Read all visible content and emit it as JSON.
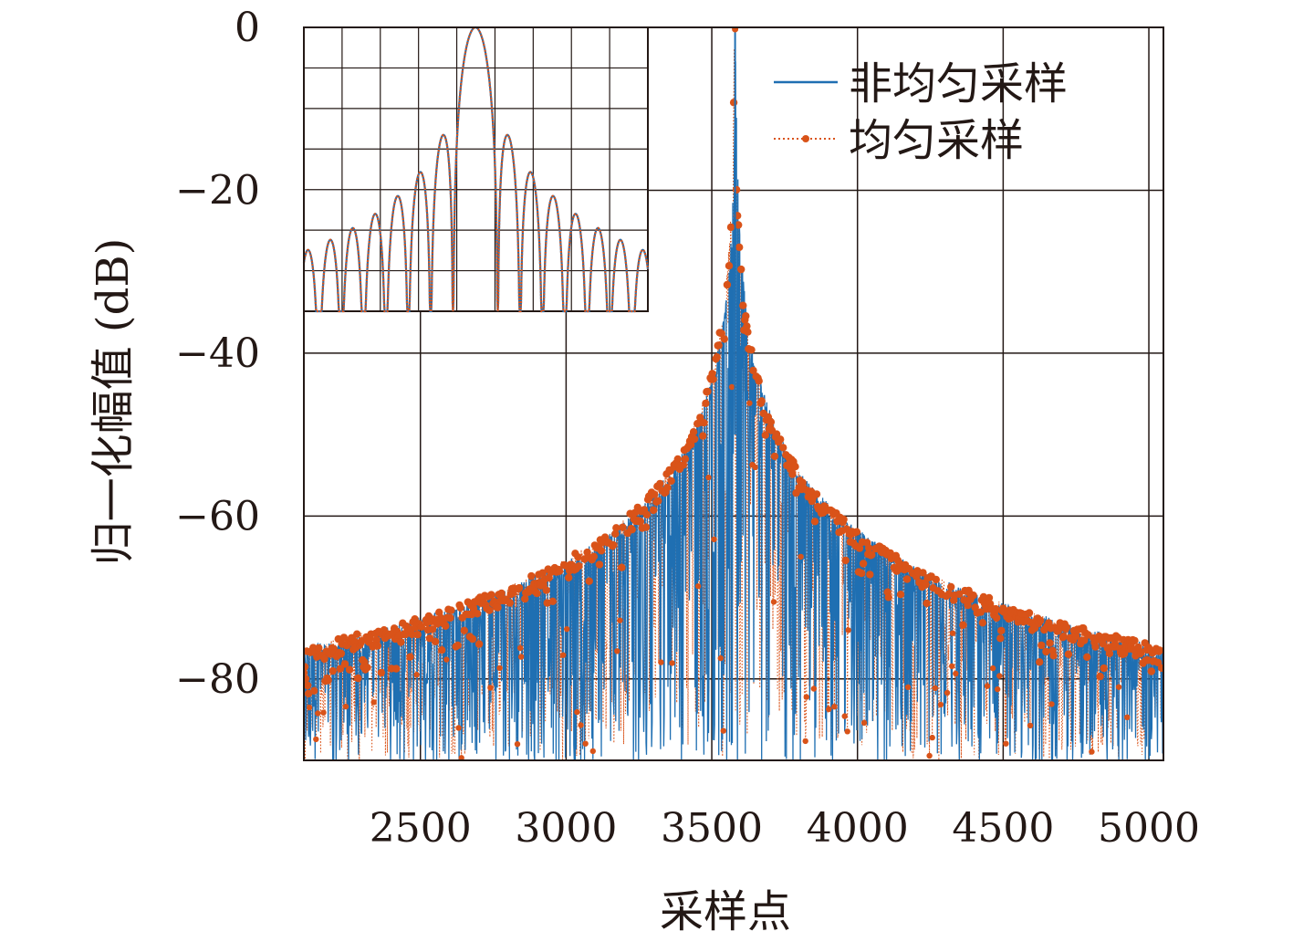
{
  "chart_data": {
    "type": "line",
    "title": "",
    "xlabel": "采样点",
    "ylabel": "归一化幅值 (dB)",
    "xlim": [
      2100,
      5050
    ],
    "ylim": [
      -90,
      0
    ],
    "xticks": [
      2500,
      3000,
      3500,
      4000,
      4500,
      5000
    ],
    "yticks": [
      0,
      -20,
      -40,
      -60,
      -80
    ],
    "x_tick_labels": [
      "2500",
      "3000",
      "3500",
      "4000",
      "4500",
      "5000"
    ],
    "y_tick_labels": [
      "0",
      "−20",
      "−40",
      "−60",
      "−80"
    ],
    "grid": true,
    "legend_position": "top-right",
    "peak_x": 3580,
    "peak_db": 0,
    "edge_envelope_db": -76,
    "series": [
      {
        "name": "非均匀采样",
        "color": "#1f6fb2",
        "style": "solid"
      },
      {
        "name": "均匀采样",
        "color": "#d95319",
        "style": "dotted-with-markers"
      }
    ],
    "inset": {
      "description_visible": "zoomed main lobe and sidelobes",
      "ylim": [
        -35,
        0
      ],
      "sidelobe_peaks_db": [
        -13.3,
        -17.8,
        -20.8,
        -23.1,
        -24.9,
        -26.4,
        -27.7
      ]
    }
  }
}
